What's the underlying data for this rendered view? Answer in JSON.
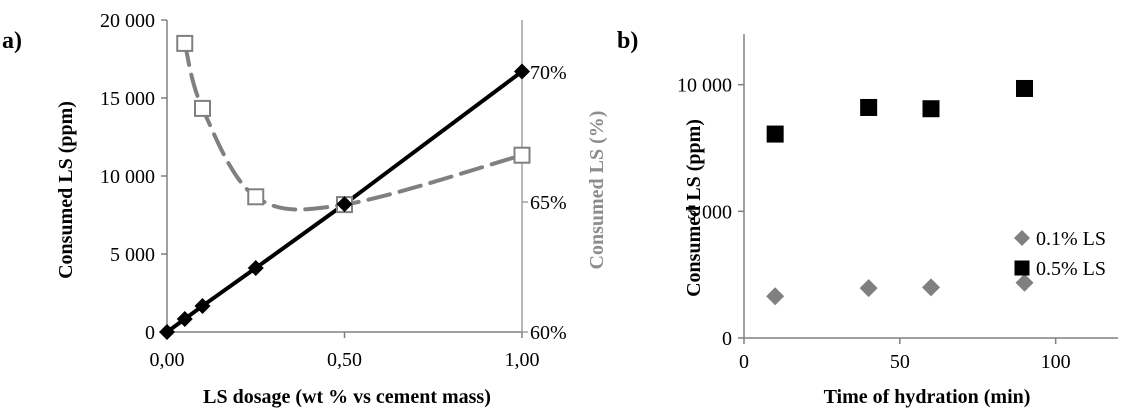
{
  "chart_data": [
    {
      "panel_label": "a)",
      "type": "line",
      "xlabel": "LS dosage (wt % vs cement mass)",
      "ylabel": "Consumed LS (ppm)",
      "y2label": "Consumed LS (%)",
      "xlim": [
        0,
        1
      ],
      "ylim": [
        0,
        20000
      ],
      "y2lim": [
        60,
        72
      ],
      "x_ticks": [
        "0,00",
        "0,50",
        "1,00"
      ],
      "y_ticks": [
        "0",
        "5 000",
        "10 000",
        "15 000",
        "20 000"
      ],
      "y2_ticks": [
        "60%",
        "65%",
        "70%"
      ],
      "grid": false,
      "series": [
        {
          "axis": "left",
          "color": "#000000",
          "marker": "diamond",
          "points": [
            [
              0,
              0
            ],
            [
              0.05,
              830
            ],
            [
              0.1,
              1670
            ],
            [
              0.25,
              4100
            ],
            [
              0.5,
              8200
            ],
            [
              1.0,
              16700
            ]
          ]
        },
        {
          "axis": "right",
          "color": "#808080",
          "marker": "square-open",
          "dashed": true,
          "points": [
            [
              0.05,
              71.1
            ],
            [
              0.1,
              68.6
            ],
            [
              0.25,
              65.2
            ],
            [
              0.5,
              64.9
            ],
            [
              1.0,
              66.8
            ]
          ]
        }
      ]
    },
    {
      "panel_label": "b)",
      "type": "scatter",
      "xlabel": "Time of hydration (min)",
      "ylabel": "Consumed LS (ppm)",
      "xlim": [
        0,
        120
      ],
      "ylim": [
        0,
        12000
      ],
      "x_ticks": [
        "0",
        "50",
        "100"
      ],
      "y_ticks": [
        "0",
        "5 000",
        "10 000"
      ],
      "grid": false,
      "legend_position": "right",
      "series": [
        {
          "name": "0.1% LS",
          "color": "#808080",
          "marker": "diamond",
          "x": [
            10,
            40,
            60,
            90
          ],
          "y": [
            1650,
            1970,
            2000,
            2180
          ]
        },
        {
          "name": "0.5% LS",
          "color": "#000000",
          "marker": "square",
          "x": [
            10,
            40,
            60,
            90
          ],
          "y": [
            8050,
            9100,
            9050,
            9850
          ]
        }
      ]
    }
  ]
}
